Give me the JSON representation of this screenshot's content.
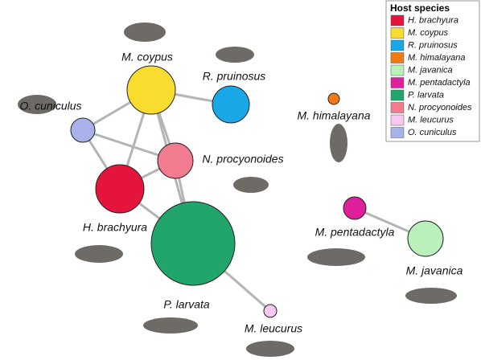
{
  "nodes": [
    {
      "label": "M. coypus",
      "color": "#f8dc2e"
    },
    {
      "label": "R. pruinosus",
      "color": "#18a8e8"
    },
    {
      "label": "O. cuniculus",
      "color": "#a9b1ea"
    },
    {
      "label": "N. procyonoides",
      "color": "#f27b8f"
    },
    {
      "label": "H. brachyura",
      "color": "#e5143c"
    },
    {
      "label": "P. larvata",
      "color": "#21a56b"
    },
    {
      "label": "M. leucurus",
      "color": "#f7c8f1"
    },
    {
      "label": "M. himalayana",
      "color": "#f17a17"
    },
    {
      "label": "M. pentadactyla",
      "color": "#e01f9d"
    },
    {
      "label": "M. javanica",
      "color": "#baf0b9"
    }
  ],
  "legend": {
    "title": "Host species",
    "items": [
      {
        "label": "H. brachyura",
        "color": "#e5143c"
      },
      {
        "label": "M. coypus",
        "color": "#f8dc2e"
      },
      {
        "label": "R. pruinosus",
        "color": "#18a8e8"
      },
      {
        "label": "M. himalayana",
        "color": "#f17a17"
      },
      {
        "label": "M. javanica",
        "color": "#baf0b9"
      },
      {
        "label": "M. pentadactyla",
        "color": "#e01f9d"
      },
      {
        "label": "P. larvata",
        "color": "#21a56b"
      },
      {
        "label": "N. procyonoides",
        "color": "#f27b8f"
      },
      {
        "label": "M. leucurus",
        "color": "#f7c8f1"
      },
      {
        "label": "O. cuniculus",
        "color": "#a9b1ea"
      }
    ]
  }
}
